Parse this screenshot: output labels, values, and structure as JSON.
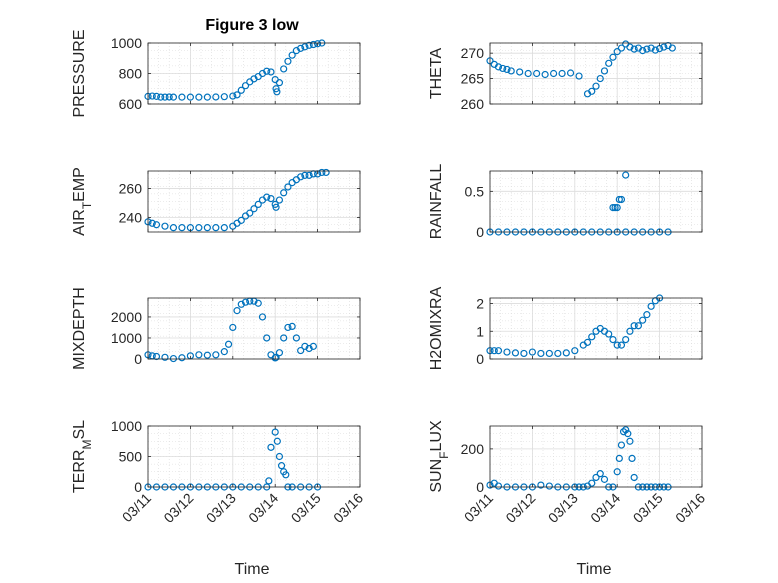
{
  "title": "Figure 3 low",
  "marker_color": "#0072bd",
  "x_ticks": [
    "03/11",
    "03/12",
    "03/13",
    "03/14",
    "03/15",
    "03/16"
  ],
  "x_label": "Time",
  "chart_data": [
    {
      "type": "scatter",
      "title": "Figure 3 low",
      "ylabel": "PRESSURE",
      "xlim": [
        0,
        5
      ],
      "ylim": [
        600,
        1000
      ],
      "yticks": [
        600,
        800,
        1000
      ],
      "grid": true,
      "minor_grid": true,
      "x": [
        0.0,
        0.1,
        0.2,
        0.3,
        0.4,
        0.5,
        0.6,
        0.8,
        1.0,
        1.2,
        1.4,
        1.6,
        1.8,
        2.0,
        2.1,
        2.2,
        2.3,
        2.4,
        2.5,
        2.6,
        2.7,
        2.8,
        2.9,
        3.0,
        3.02,
        3.04,
        3.1,
        3.2,
        3.3,
        3.4,
        3.5,
        3.6,
        3.7,
        3.8,
        3.9,
        4.0,
        4.1
      ],
      "y": [
        650,
        652,
        650,
        645,
        645,
        646,
        645,
        645,
        645,
        645,
        645,
        646,
        648,
        652,
        660,
        690,
        720,
        745,
        765,
        780,
        800,
        815,
        810,
        760,
        700,
        680,
        740,
        830,
        880,
        920,
        950,
        965,
        975,
        985,
        990,
        995,
        1000
      ]
    },
    {
      "type": "scatter",
      "ylabel": "THETA",
      "xlim": [
        0,
        5
      ],
      "ylim": [
        260,
        272
      ],
      "yticks": [
        260,
        265,
        270
      ],
      "grid": true,
      "minor_grid": true,
      "x": [
        0.0,
        0.1,
        0.2,
        0.3,
        0.4,
        0.5,
        0.7,
        0.9,
        1.1,
        1.3,
        1.5,
        1.7,
        1.9,
        2.1,
        2.3,
        2.4,
        2.5,
        2.6,
        2.7,
        2.8,
        2.9,
        3.0,
        3.1,
        3.2,
        3.3,
        3.4,
        3.5,
        3.6,
        3.7,
        3.8,
        3.9,
        4.0,
        4.1,
        4.2,
        4.3
      ],
      "y": [
        268.5,
        267.8,
        267.3,
        267.0,
        266.8,
        266.5,
        266.3,
        266.0,
        266.0,
        265.8,
        266.0,
        266.0,
        266.1,
        265.5,
        262.0,
        262.5,
        263.5,
        265.0,
        266.5,
        268.0,
        269.2,
        270.3,
        271.0,
        271.8,
        271.2,
        270.8,
        271.0,
        270.5,
        270.8,
        271.0,
        270.6,
        270.9,
        271.2,
        271.5,
        271.0
      ]
    },
    {
      "type": "scatter",
      "ylabel": "AIR_TEMP",
      "xlim": [
        0,
        5
      ],
      "ylim": [
        230,
        272
      ],
      "yticks": [
        240,
        260
      ],
      "grid": true,
      "minor_grid": true,
      "x": [
        0.0,
        0.1,
        0.2,
        0.4,
        0.6,
        0.8,
        1.0,
        1.2,
        1.4,
        1.6,
        1.8,
        2.0,
        2.1,
        2.2,
        2.3,
        2.4,
        2.5,
        2.6,
        2.7,
        2.8,
        2.9,
        3.0,
        3.02,
        3.1,
        3.2,
        3.3,
        3.4,
        3.5,
        3.6,
        3.7,
        3.8,
        3.9,
        4.0,
        4.1,
        4.2
      ],
      "y": [
        237,
        236,
        235,
        234,
        233,
        233,
        233,
        233,
        233,
        233,
        233,
        234,
        236,
        238,
        241,
        243,
        246,
        249,
        252,
        254,
        253,
        249,
        247,
        252,
        257,
        261,
        264,
        266,
        268,
        269,
        269,
        270,
        270,
        271,
        271
      ]
    },
    {
      "type": "scatter",
      "ylabel": "RAINFALL",
      "xlim": [
        0,
        5
      ],
      "ylim": [
        0,
        0.75
      ],
      "yticks": [
        0,
        0.5
      ],
      "ytick_labels": [
        "0",
        "0.5"
      ],
      "grid": true,
      "minor_grid": true,
      "x": [
        0.0,
        0.2,
        0.4,
        0.6,
        0.8,
        1.0,
        1.2,
        1.4,
        1.6,
        1.8,
        2.0,
        2.2,
        2.4,
        2.6,
        2.8,
        3.0,
        3.2,
        3.4,
        3.6,
        3.8,
        4.0,
        4.2,
        2.9,
        2.95,
        3.0,
        3.05,
        3.1,
        3.2
      ],
      "y": [
        0,
        0,
        0,
        0,
        0,
        0,
        0,
        0,
        0,
        0,
        0,
        0,
        0,
        0,
        0,
        0,
        0,
        0,
        0,
        0,
        0,
        0,
        0.3,
        0.3,
        0.3,
        0.4,
        0.4,
        0.7
      ]
    },
    {
      "type": "scatter",
      "ylabel": "MIXDEPTH",
      "xlim": [
        0,
        5
      ],
      "ylim": [
        0,
        2900
      ],
      "yticks": [
        0,
        1000,
        2000
      ],
      "grid": true,
      "minor_grid": true,
      "x": [
        0.0,
        0.1,
        0.2,
        0.4,
        0.6,
        0.8,
        1.0,
        1.2,
        1.4,
        1.6,
        1.8,
        1.9,
        2.0,
        2.1,
        2.2,
        2.3,
        2.4,
        2.5,
        2.6,
        2.7,
        2.8,
        2.9,
        3.0,
        3.02,
        3.1,
        3.2,
        3.3,
        3.4,
        3.5,
        3.6,
        3.7,
        3.8,
        3.9
      ],
      "y": [
        200,
        150,
        120,
        80,
        20,
        60,
        150,
        200,
        180,
        200,
        350,
        700,
        1500,
        2300,
        2600,
        2700,
        2750,
        2750,
        2650,
        2000,
        1000,
        200,
        50,
        80,
        300,
        1000,
        1500,
        1550,
        1000,
        400,
        600,
        500,
        600
      ]
    },
    {
      "type": "scatter",
      "ylabel": "H2OMIXRA",
      "xlim": [
        0,
        5
      ],
      "ylim": [
        0,
        2.2
      ],
      "yticks": [
        0,
        1,
        2
      ],
      "grid": true,
      "minor_grid": true,
      "x": [
        0.0,
        0.1,
        0.2,
        0.4,
        0.6,
        0.8,
        1.0,
        1.2,
        1.4,
        1.6,
        1.8,
        2.0,
        2.2,
        2.3,
        2.4,
        2.5,
        2.6,
        2.7,
        2.8,
        2.9,
        3.0,
        3.1,
        3.2,
        3.3,
        3.4,
        3.5,
        3.6,
        3.7,
        3.8,
        3.9,
        4.0
      ],
      "y": [
        0.3,
        0.3,
        0.3,
        0.25,
        0.22,
        0.2,
        0.25,
        0.2,
        0.2,
        0.2,
        0.22,
        0.3,
        0.5,
        0.6,
        0.8,
        1.0,
        1.1,
        1.0,
        0.9,
        0.7,
        0.5,
        0.5,
        0.7,
        1.0,
        1.2,
        1.2,
        1.4,
        1.6,
        1.9,
        2.1,
        2.2
      ]
    },
    {
      "type": "scatter",
      "ylabel": "TERR_MSL",
      "xlim": [
        0,
        5
      ],
      "ylim": [
        0,
        1000
      ],
      "yticks": [
        0,
        500,
        1000
      ],
      "grid": true,
      "minor_grid": true,
      "x": [
        0.0,
        0.2,
        0.4,
        0.6,
        0.8,
        1.0,
        1.2,
        1.4,
        1.6,
        1.8,
        2.0,
        2.2,
        2.4,
        2.6,
        2.8,
        2.85,
        2.9,
        3.0,
        3.05,
        3.1,
        3.15,
        3.2,
        3.25,
        3.3,
        3.4,
        3.6,
        3.8,
        4.0
      ],
      "y": [
        0,
        0,
        0,
        0,
        0,
        0,
        0,
        0,
        0,
        0,
        0,
        0,
        0,
        0,
        0,
        100,
        650,
        900,
        750,
        500,
        350,
        250,
        200,
        0,
        0,
        0,
        0,
        0
      ]
    },
    {
      "type": "scatter",
      "ylabel": "SUN_FLUX",
      "xlim": [
        0,
        5
      ],
      "ylim": [
        0,
        320
      ],
      "yticks": [
        0,
        200
      ],
      "grid": true,
      "minor_grid": true,
      "x": [
        0.0,
        0.1,
        0.2,
        0.4,
        0.6,
        0.8,
        1.0,
        1.2,
        1.4,
        1.6,
        1.8,
        2.0,
        2.1,
        2.2,
        2.3,
        2.4,
        2.5,
        2.6,
        2.7,
        2.8,
        2.9,
        3.0,
        3.05,
        3.1,
        3.15,
        3.2,
        3.25,
        3.3,
        3.35,
        3.4,
        3.5,
        3.6,
        3.7,
        3.8,
        3.9,
        4.0,
        4.1,
        4.2
      ],
      "y": [
        10,
        20,
        5,
        0,
        0,
        0,
        0,
        10,
        5,
        0,
        0,
        0,
        0,
        0,
        5,
        20,
        50,
        70,
        40,
        0,
        0,
        80,
        150,
        220,
        290,
        300,
        280,
        240,
        150,
        50,
        0,
        0,
        0,
        0,
        0,
        0,
        0,
        0
      ]
    }
  ]
}
